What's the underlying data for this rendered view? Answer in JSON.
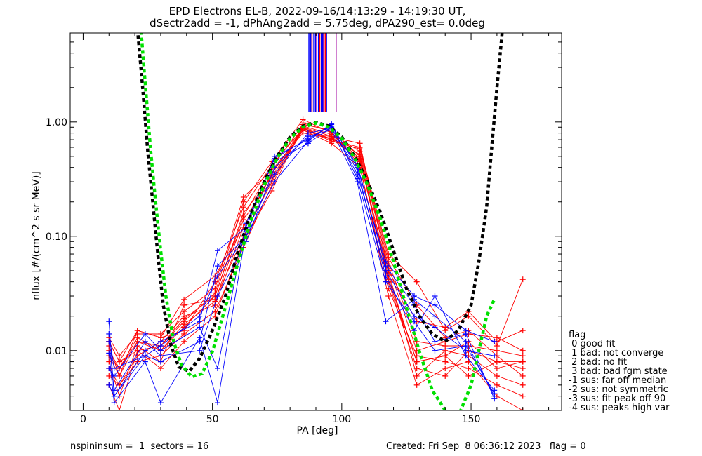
{
  "header": {
    "title_line1": "EPD Electrons EL-B, 2022-09-16/14:13:29 - 14:19:30 UT,",
    "title_line2": "dSectr2add = -1, dPhAng2add = 5.75deg, dPA290_est=   0.0deg"
  },
  "footer": {
    "left": "nspininsum =  1  sectors = 16",
    "right": "Created: Fri Sep  8 06:36:12 2023   flag = 0"
  },
  "legend": {
    "title": "flag",
    "items": [
      " 0 good fit",
      " 1 bad: not converge",
      " 2 bad: no fit",
      " 3 bad: bad fgm state",
      "-1 sus: far off median",
      "-2 sus: not symmetric",
      "-3 sus: fit peak off 90",
      "-4 sus: peaks high var"
    ]
  },
  "chart_data": {
    "type": "line",
    "xlabel": "PA [deg]",
    "ylabel": "nflux [#/(cm^2 s sr MeV)]",
    "xlim": [
      -5,
      185
    ],
    "ylim": [
      0.003,
      6
    ],
    "yscale": "log",
    "x_ticks": [
      0,
      50,
      100,
      150
    ],
    "x_tick_labels": [
      "0",
      "50",
      "100",
      "150"
    ],
    "y_ticks": [
      0.01,
      0.1,
      1.0
    ],
    "y_tick_labels": [
      "0.01",
      "0.10",
      "1.00"
    ],
    "colors": {
      "red": "#ff0000",
      "blue": "#0000ff",
      "black": "#000000",
      "green": "#00e000",
      "purple": "#a000a0"
    },
    "red_x": [
      10,
      14,
      21,
      30,
      39,
      51,
      62,
      73,
      85,
      96,
      107,
      118,
      129,
      140,
      149,
      160,
      170
    ],
    "red_series": [
      [
        0.012,
        0.008,
        0.01,
        0.011,
        0.018,
        0.032,
        0.2,
        0.45,
        1.05,
        0.8,
        0.55,
        0.06,
        0.012,
        0.011,
        0.011,
        0.01,
        0.009
      ],
      [
        0.009,
        0.007,
        0.013,
        0.01,
        0.016,
        0.03,
        0.15,
        0.4,
        0.95,
        0.85,
        0.5,
        0.045,
        0.008,
        0.009,
        0.012,
        0.007,
        0.008
      ],
      [
        0.006,
        0.005,
        0.009,
        0.012,
        0.02,
        0.025,
        0.12,
        0.35,
        0.9,
        0.75,
        0.45,
        0.05,
        0.006,
        0.01,
        0.009,
        0.006,
        0.005
      ],
      [
        0.011,
        0.006,
        0.015,
        0.013,
        0.015,
        0.04,
        0.18,
        0.42,
        0.88,
        0.7,
        0.6,
        0.07,
        0.04,
        0.015,
        0.02,
        0.011,
        0.042
      ],
      [
        0.008,
        0.004,
        0.011,
        0.008,
        0.025,
        0.028,
        0.1,
        0.3,
        0.85,
        0.65,
        0.4,
        0.035,
        0.009,
        0.008,
        0.007,
        0.005,
        0.004
      ],
      [
        0.013,
        0.009,
        0.014,
        0.014,
        0.022,
        0.035,
        0.22,
        0.38,
        0.8,
        0.72,
        0.52,
        0.055,
        0.01,
        0.012,
        0.014,
        0.013,
        0.01
      ],
      [
        0.007,
        0.005,
        0.008,
        0.009,
        0.014,
        0.022,
        0.08,
        0.28,
        0.92,
        0.78,
        0.48,
        0.04,
        0.007,
        0.006,
        0.01,
        0.008,
        0.007
      ],
      [
        0.01,
        0.007,
        0.012,
        0.011,
        0.019,
        0.03,
        0.16,
        0.33,
        0.87,
        0.68,
        0.58,
        0.065,
        0.025,
        0.013,
        0.015,
        0.009,
        0.006
      ],
      [
        0.005,
        0.003,
        0.01,
        0.007,
        0.012,
        0.02,
        0.09,
        0.25,
        0.98,
        0.82,
        0.42,
        0.03,
        0.005,
        0.007,
        0.008,
        0.004,
        0.003
      ],
      [
        0.012,
        0.008,
        0.015,
        0.013,
        0.028,
        0.045,
        0.12,
        0.36,
        0.84,
        0.74,
        0.65,
        0.05,
        0.018,
        0.016,
        0.022,
        0.012,
        0.015
      ],
      [
        0.009,
        0.006,
        0.012,
        0.01,
        0.017,
        0.027,
        0.14,
        0.31,
        0.89,
        0.71,
        0.47,
        0.042,
        0.008,
        0.009,
        0.006,
        0.008,
        0.008
      ]
    ],
    "blue_x": [
      10,
      12,
      24,
      30,
      45,
      52,
      63,
      74,
      87,
      96,
      106,
      117,
      128,
      136,
      148,
      159
    ],
    "blue_series": [
      [
        0.018,
        0.004,
        0.01,
        0.012,
        0.018,
        0.075,
        0.12,
        0.5,
        0.7,
        0.95,
        0.4,
        0.06,
        0.03,
        0.025,
        0.015,
        0.012
      ],
      [
        0.014,
        0.007,
        0.009,
        0.008,
        0.012,
        0.055,
        0.1,
        0.45,
        0.65,
        0.9,
        0.35,
        0.05,
        0.02,
        0.016,
        0.01,
        0.009
      ],
      [
        0.012,
        0.0045,
        0.012,
        0.009,
        0.01,
        0.03,
        0.09,
        0.4,
        0.75,
        0.85,
        0.3,
        0.018,
        0.028,
        0.02,
        0.012,
        0.004
      ],
      [
        0.0095,
        0.0035,
        0.008,
        0.0035,
        0.013,
        0.0035,
        0.11,
        0.35,
        0.8,
        0.88,
        0.38,
        0.045,
        0.015,
        0.03,
        0.009,
        0.0045
      ],
      [
        0.007,
        0.006,
        0.014,
        0.01,
        0.016,
        0.007,
        0.13,
        0.48,
        0.72,
        0.92,
        0.42,
        0.055,
        0.025,
        0.012,
        0.014,
        0.0038
      ],
      [
        0.005,
        0.004,
        0.009,
        0.011,
        0.02,
        0.045,
        0.1,
        0.3,
        0.68,
        0.96,
        0.32,
        0.04,
        0.018,
        0.01,
        0.011,
        0.0042
      ]
    ],
    "green_fit": {
      "x": [
        22,
        24,
        26,
        28,
        30,
        32,
        35,
        38,
        42,
        46,
        50,
        55,
        60,
        65,
        70,
        75,
        80,
        85,
        90,
        95,
        100,
        105,
        110,
        115,
        120,
        125,
        130,
        135,
        140,
        143,
        146,
        150,
        153,
        156,
        159
      ],
      "y": [
        8.0,
        2.2,
        0.6,
        0.2,
        0.075,
        0.03,
        0.012,
        0.0075,
        0.0059,
        0.0063,
        0.0098,
        0.024,
        0.06,
        0.14,
        0.28,
        0.48,
        0.72,
        0.9,
        0.98,
        0.9,
        0.72,
        0.48,
        0.28,
        0.14,
        0.06,
        0.024,
        0.0098,
        0.0045,
        0.003,
        0.0025,
        0.003,
        0.005,
        0.01,
        0.02,
        0.028
      ]
    },
    "black_fit": {
      "x": [
        21,
        23,
        25,
        27,
        29,
        31,
        34,
        37,
        41,
        45,
        50,
        55,
        60,
        65,
        70,
        75,
        80,
        85,
        90,
        95,
        100,
        105,
        110,
        115,
        120,
        125,
        130,
        135,
        140,
        145,
        150,
        153,
        156,
        158,
        160,
        162
      ],
      "y": [
        6.5,
        2.0,
        0.55,
        0.19,
        0.065,
        0.025,
        0.011,
        0.0072,
        0.0066,
        0.0085,
        0.015,
        0.03,
        0.075,
        0.16,
        0.3,
        0.5,
        0.74,
        0.92,
        0.99,
        0.92,
        0.74,
        0.5,
        0.3,
        0.16,
        0.075,
        0.035,
        0.02,
        0.014,
        0.012,
        0.015,
        0.025,
        0.06,
        0.18,
        0.6,
        2.0,
        6.0
      ]
    },
    "top_marks": [
      {
        "x": 87.3,
        "color": "blue"
      },
      {
        "x": 88.0,
        "color": "blue"
      },
      {
        "x": 88.5,
        "color": "red"
      },
      {
        "x": 89.2,
        "color": "blue"
      },
      {
        "x": 89.8,
        "color": "blue"
      },
      {
        "x": 90.3,
        "color": "purple"
      },
      {
        "x": 91.0,
        "color": "blue"
      },
      {
        "x": 91.5,
        "color": "red"
      },
      {
        "x": 92.1,
        "color": "blue"
      },
      {
        "x": 92.6,
        "color": "blue"
      },
      {
        "x": 93.0,
        "color": "purple"
      },
      {
        "x": 93.6,
        "color": "red"
      },
      {
        "x": 94.1,
        "color": "blue"
      },
      {
        "x": 97.8,
        "color": "purple"
      }
    ]
  }
}
